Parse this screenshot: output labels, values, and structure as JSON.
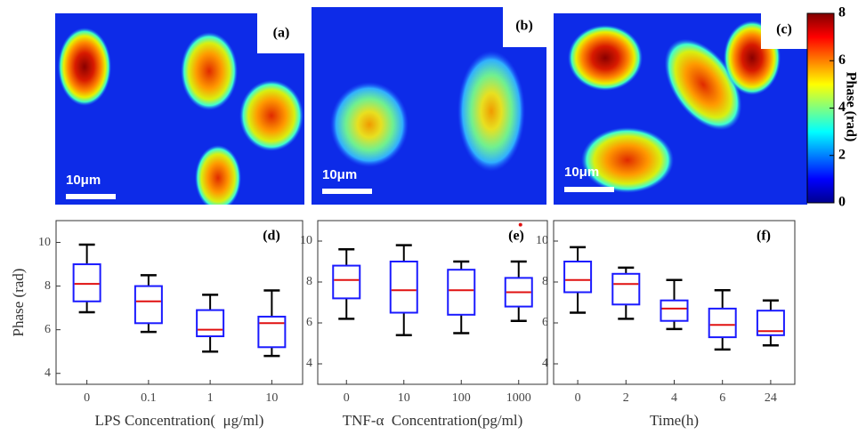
{
  "images": [
    {
      "label": "(a)",
      "scale_bar": "10μm"
    },
    {
      "label": "(b)",
      "scale_bar": "10μm"
    },
    {
      "label": "(c)",
      "scale_bar": "10μm"
    }
  ],
  "colorbar": {
    "label": "Phase (rad)",
    "lim": [
      0,
      8
    ],
    "ticks": [
      0,
      2,
      4,
      6,
      8
    ]
  },
  "chart_data": [
    {
      "type": "box",
      "label": "(d)",
      "ylabel": "Phase (rad)",
      "xlabel": "LPS Concentration(  μg/ml)",
      "categories": [
        "0",
        "0.1",
        "1",
        "10"
      ],
      "whislo": [
        6.8,
        5.9,
        5.0,
        4.8
      ],
      "q1": [
        7.3,
        6.3,
        5.7,
        5.2
      ],
      "med": [
        8.1,
        7.3,
        6.0,
        6.3
      ],
      "q3": [
        9.0,
        8.0,
        6.9,
        6.6
      ],
      "whishi": [
        9.9,
        8.5,
        7.6,
        7.8
      ],
      "fliers": [
        [],
        [],
        [],
        []
      ],
      "ylim": [
        3.5,
        11
      ],
      "yticks": [
        4,
        6,
        8,
        10
      ],
      "box_color": "#1a1aff",
      "median_color": "#e01010",
      "whisker_color": "#000000"
    },
    {
      "type": "box",
      "label": "(e)",
      "xlabel": "TNF-α  Concentration(pg/ml)",
      "categories": [
        "0",
        "10",
        "100",
        "1000"
      ],
      "whislo": [
        6.2,
        5.4,
        5.5,
        6.1
      ],
      "q1": [
        7.2,
        6.5,
        6.4,
        6.8
      ],
      "med": [
        8.1,
        7.6,
        7.6,
        7.5
      ],
      "q3": [
        8.8,
        9.0,
        8.6,
        8.2
      ],
      "whishi": [
        9.6,
        9.8,
        9.0,
        9.0
      ],
      "fliers": [
        [],
        [],
        [],
        [
          10.8
        ]
      ],
      "ylim": [
        3.0,
        11
      ],
      "yticks": [
        4,
        6,
        8,
        10
      ],
      "box_color": "#1a1aff",
      "median_color": "#e01010",
      "whisker_color": "#000000"
    },
    {
      "type": "box",
      "label": "(f)",
      "xlabel": "Time(h)",
      "categories": [
        "0",
        "2",
        "4",
        "6",
        "24"
      ],
      "whislo": [
        6.5,
        6.2,
        5.7,
        4.7,
        4.9
      ],
      "q1": [
        7.5,
        6.9,
        6.1,
        5.3,
        5.4
      ],
      "med": [
        8.1,
        7.9,
        6.7,
        5.9,
        5.6
      ],
      "q3": [
        9.0,
        8.4,
        7.1,
        6.7,
        6.6
      ],
      "whishi": [
        9.7,
        8.7,
        8.1,
        7.6,
        7.1
      ],
      "fliers": [
        [],
        [],
        [],
        [],
        []
      ],
      "ylim": [
        3.0,
        11
      ],
      "yticks": [
        4,
        6,
        8,
        10
      ],
      "box_color": "#1a1aff",
      "median_color": "#e01010",
      "whisker_color": "#000000"
    }
  ]
}
